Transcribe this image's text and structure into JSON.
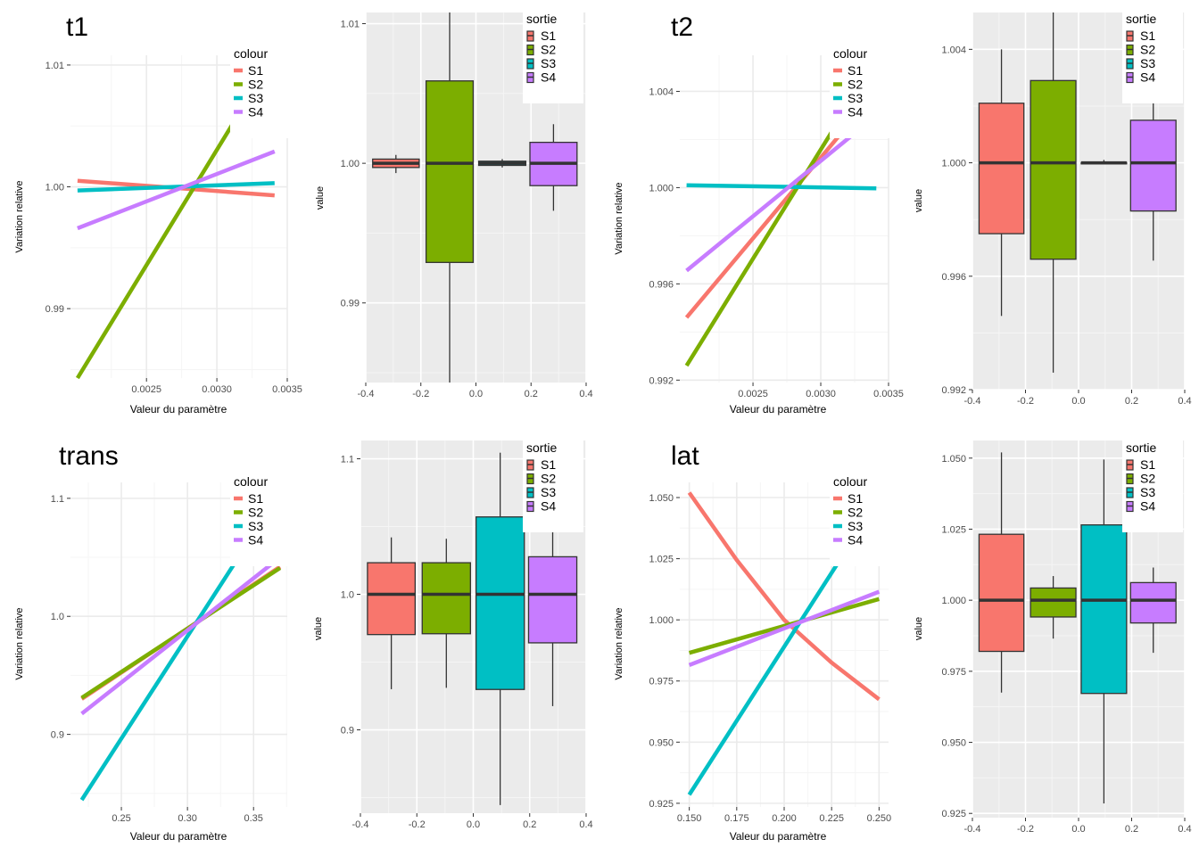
{
  "chart_data": [
    {
      "type": "line",
      "title": "t1",
      "xlabel": "Valeur du paramètre",
      "ylabel": "Variation relative",
      "legend_title": "colour",
      "legend_position": "top-right",
      "grid": true,
      "xlim": [
        0.00196,
        0.0035
      ],
      "ylim": [
        0.9843,
        1.0108
      ],
      "xticks": [
        0.0025,
        0.003,
        0.0035
      ],
      "xtick_labels": [
        "0.0025",
        "0.0030",
        "0.0035"
      ],
      "yticks": [
        0.99,
        1.0,
        1.01
      ],
      "ytick_labels": [
        "0.99",
        "1.00",
        "1.01"
      ],
      "series": [
        {
          "name": "S1",
          "color": "#F8766D",
          "x": [
            0.00201,
            0.00341
          ],
          "y": [
            1.0005,
            0.9993
          ]
        },
        {
          "name": "S2",
          "color": "#7CAE00",
          "x": [
            0.00201,
            0.00341
          ],
          "y": [
            0.9843,
            1.0108
          ]
        },
        {
          "name": "S3",
          "color": "#00BFC4",
          "x": [
            0.00201,
            0.00341
          ],
          "y": [
            0.9997,
            1.0003
          ]
        },
        {
          "name": "S4",
          "color": "#C77CFF",
          "x": [
            0.00201,
            0.00341
          ],
          "y": [
            0.9966,
            1.0029
          ]
        }
      ]
    },
    {
      "type": "box",
      "xlabel": "",
      "ylabel": "value",
      "legend_title": "sortie",
      "legend_position": "top-right",
      "grid": true,
      "xlim": [
        -0.4,
        0.4
      ],
      "ylim": [
        0.9843,
        1.0108
      ],
      "xticks": [
        -0.4,
        -0.2,
        0.0,
        0.2,
        0.4
      ],
      "xtick_labels": [
        "-0.4",
        "-0.2",
        "0.0",
        "0.2",
        "0.4"
      ],
      "yticks": [
        0.99,
        1.0,
        1.01
      ],
      "ytick_labels": [
        "0.99",
        "1.00",
        "1.01"
      ],
      "boxes": [
        {
          "name": "S1",
          "color": "#F8766D",
          "x0": -0.375,
          "x1": -0.206,
          "min": 0.9993,
          "q1": 0.9997,
          "median": 1.0,
          "q3": 1.0003,
          "max": 1.0006
        },
        {
          "name": "S2",
          "color": "#7CAE00",
          "x0": -0.181,
          "x1": -0.01,
          "min": 0.9843,
          "q1": 0.9929,
          "median": 1.0,
          "q3": 1.0059,
          "max": 1.0108
        },
        {
          "name": "S3",
          "color": "#00BFC4",
          "x0": 0.01,
          "x1": 0.181,
          "min": 0.9997,
          "q1": 0.99985,
          "median": 1.0,
          "q3": 1.00015,
          "max": 1.0003
        },
        {
          "name": "S4",
          "color": "#C77CFF",
          "x0": 0.196,
          "x1": 0.367,
          "min": 0.9966,
          "q1": 0.9984,
          "median": 1.0,
          "q3": 1.0015,
          "max": 1.0028
        }
      ]
    },
    {
      "type": "line",
      "title": "t2",
      "xlabel": "Valeur du paramètre",
      "ylabel": "Variation relative",
      "legend_title": "colour",
      "legend_position": "top-right",
      "grid": true,
      "xlim": [
        0.00196,
        0.0035
      ],
      "ylim": [
        0.9919,
        1.0055
      ],
      "xticks": [
        0.0025,
        0.003,
        0.0035
      ],
      "xtick_labels": [
        "0.0025",
        "0.0030",
        "0.0035"
      ],
      "yticks": [
        0.992,
        0.996,
        1.0,
        1.004
      ],
      "ytick_labels": [
        "0.992",
        "0.996",
        "1.000",
        "1.004"
      ],
      "series": [
        {
          "name": "S1",
          "color": "#F8766D",
          "x": [
            0.00201,
            0.00341
          ],
          "y": [
            0.9946,
            1.004
          ]
        },
        {
          "name": "S2",
          "color": "#7CAE00",
          "x": [
            0.00201,
            0.00341
          ],
          "y": [
            0.9926,
            1.0053
          ]
        },
        {
          "name": "S3",
          "color": "#00BFC4",
          "x": [
            0.00201,
            0.00341
          ],
          "y": [
            1.0001,
            0.99997
          ]
        },
        {
          "name": "S4",
          "color": "#C77CFF",
          "x": [
            0.00201,
            0.00341
          ],
          "y": [
            0.99655,
            1.003
          ]
        }
      ]
    },
    {
      "type": "box",
      "xlabel": "",
      "ylabel": "value",
      "legend_title": "sortie",
      "legend_position": "top-right",
      "grid": true,
      "xlim": [
        -0.4,
        0.4
      ],
      "ylim": [
        0.992,
        1.0053
      ],
      "xticks": [
        -0.4,
        -0.2,
        0.0,
        0.2,
        0.4
      ],
      "xtick_labels": [
        "-0.4",
        "-0.2",
        "0.0",
        "0.2",
        "0.4"
      ],
      "yticks": [
        0.992,
        0.996,
        1.0,
        1.004
      ],
      "ytick_labels": [
        "0.992",
        "0.996",
        "1.000",
        "1.004"
      ],
      "boxes": [
        {
          "name": "S1",
          "color": "#F8766D",
          "x0": -0.375,
          "x1": -0.206,
          "min": 0.9946,
          "q1": 0.9975,
          "median": 1.0,
          "q3": 1.0021,
          "max": 1.004
        },
        {
          "name": "S2",
          "color": "#7CAE00",
          "x0": -0.181,
          "x1": -0.01,
          "min": 0.9926,
          "q1": 0.9966,
          "median": 1.0,
          "q3": 1.0029,
          "max": 1.0053
        },
        {
          "name": "S3",
          "color": "#00BFC4",
          "x0": 0.01,
          "x1": 0.181,
          "min": 0.99997,
          "q1": 0.99999,
          "median": 1.0,
          "q3": 1.00001,
          "max": 1.0001
        },
        {
          "name": "S4",
          "color": "#C77CFF",
          "x0": 0.196,
          "x1": 0.367,
          "min": 0.99655,
          "q1": 0.9983,
          "median": 1.0,
          "q3": 1.0015,
          "max": 1.003
        }
      ]
    },
    {
      "type": "line",
      "title": "trans",
      "xlabel": "Valeur du paramètre",
      "ylabel": "Variation relative",
      "legend_title": "colour",
      "legend_position": "top-right",
      "grid": true,
      "xlim": [
        0.2115,
        0.3755
      ],
      "ylim": [
        0.8385,
        1.1135
      ],
      "xticks": [
        0.25,
        0.3,
        0.35
      ],
      "xtick_labels": [
        "0.25",
        "0.30",
        "0.35"
      ],
      "yticks": [
        0.9,
        1.0,
        1.1
      ],
      "ytick_labels": [
        "0.9",
        "1.0",
        "1.1"
      ],
      "series": [
        {
          "name": "S1",
          "color": "#F8766D",
          "x": [
            0.22,
            0.37
          ],
          "y": [
            0.93,
            1.042
          ]
        },
        {
          "name": "S2",
          "color": "#7CAE00",
          "x": [
            0.22,
            0.37
          ],
          "y": [
            0.931,
            1.041
          ]
        },
        {
          "name": "S3",
          "color": "#00BFC4",
          "x": [
            0.22,
            0.37
          ],
          "y": [
            0.8445,
            1.1045
          ]
        },
        {
          "name": "S4",
          "color": "#C77CFF",
          "x": [
            0.22,
            0.37
          ],
          "y": [
            0.9175,
            1.05
          ]
        }
      ]
    },
    {
      "type": "box",
      "xlabel": "",
      "ylabel": "value",
      "legend_title": "sortie",
      "legend_position": "top-right",
      "grid": true,
      "xlim": [
        -0.4,
        0.4
      ],
      "ylim": [
        0.8385,
        1.1135
      ],
      "xticks": [
        -0.4,
        -0.2,
        0.0,
        0.2,
        0.4
      ],
      "xtick_labels": [
        "-0.4",
        "-0.2",
        "0.0",
        "0.2",
        "0.4"
      ],
      "yticks": [
        0.9,
        1.0,
        1.1
      ],
      "ytick_labels": [
        "0.9",
        "1.0",
        "1.1"
      ],
      "boxes": [
        {
          "name": "S1",
          "color": "#F8766D",
          "x0": -0.375,
          "x1": -0.206,
          "min": 0.93,
          "q1": 0.9703,
          "median": 1.0,
          "q3": 1.0233,
          "max": 1.042
        },
        {
          "name": "S2",
          "color": "#7CAE00",
          "x0": -0.181,
          "x1": -0.01,
          "min": 0.931,
          "q1": 0.9709,
          "median": 1.0,
          "q3": 1.0233,
          "max": 1.041
        },
        {
          "name": "S3",
          "color": "#00BFC4",
          "x0": 0.01,
          "x1": 0.181,
          "min": 0.8445,
          "q1": 0.9298,
          "median": 1.0,
          "q3": 1.0571,
          "max": 1.1045
        },
        {
          "name": "S4",
          "color": "#C77CFF",
          "x0": 0.196,
          "x1": 0.367,
          "min": 0.9175,
          "q1": 0.9642,
          "median": 1.0,
          "q3": 1.0277,
          "max": 1.05
        }
      ]
    },
    {
      "type": "line",
      "title": "lat",
      "xlabel": "Valeur du paramètre",
      "ylabel": "Variation relative",
      "legend_title": "colour",
      "legend_position": "top-right",
      "grid": true,
      "xlim": [
        0.145,
        0.255
      ],
      "ylim": [
        0.9235,
        1.0562
      ],
      "xticks": [
        0.15,
        0.175,
        0.2,
        0.225,
        0.25
      ],
      "xtick_labels": [
        "0.150",
        "0.175",
        "0.200",
        "0.225",
        "0.250"
      ],
      "yticks": [
        0.925,
        0.95,
        0.975,
        1.0,
        1.025,
        1.05
      ],
      "ytick_labels": [
        "0.925",
        "0.950",
        "0.975",
        "1.000",
        "1.025",
        "1.050"
      ],
      "series": [
        {
          "name": "S1",
          "color": "#F8766D",
          "x": [
            0.15,
            0.175,
            0.2,
            0.225,
            0.25
          ],
          "y": [
            1.052,
            1.0245,
            1.0,
            0.9825,
            0.9675
          ]
        },
        {
          "name": "S2",
          "color": "#7CAE00",
          "x": [
            0.15,
            0.25
          ],
          "y": [
            0.9865,
            1.0085
          ]
        },
        {
          "name": "S3",
          "color": "#00BFC4",
          "x": [
            0.15,
            0.25
          ],
          "y": [
            0.9285,
            1.0495
          ]
        },
        {
          "name": "S4",
          "color": "#C77CFF",
          "x": [
            0.15,
            0.25
          ],
          "y": [
            0.9815,
            1.0115
          ]
        }
      ]
    },
    {
      "type": "box",
      "xlabel": "",
      "ylabel": "value",
      "legend_title": "sortie",
      "legend_position": "top-right",
      "grid": true,
      "xlim": [
        -0.4,
        0.4
      ],
      "ylim": [
        0.9235,
        1.0562
      ],
      "xticks": [
        -0.4,
        -0.2,
        0.0,
        0.2,
        0.4
      ],
      "xtick_labels": [
        "-0.4",
        "-0.2",
        "0.0",
        "0.2",
        "0.4"
      ],
      "yticks": [
        0.925,
        0.95,
        0.975,
        1.0,
        1.025,
        1.05
      ],
      "ytick_labels": [
        "0.925",
        "0.950",
        "0.975",
        "1.000",
        "1.025",
        "1.050"
      ],
      "boxes": [
        {
          "name": "S1",
          "color": "#F8766D",
          "x0": -0.375,
          "x1": -0.206,
          "min": 0.9675,
          "q1": 0.982,
          "median": 1.0,
          "q3": 1.0232,
          "max": 1.052
        },
        {
          "name": "S2",
          "color": "#7CAE00",
          "x0": -0.181,
          "x1": -0.01,
          "min": 0.9865,
          "q1": 0.9941,
          "median": 1.0,
          "q3": 1.0043,
          "max": 1.0085
        },
        {
          "name": "S3",
          "color": "#00BFC4",
          "x0": 0.01,
          "x1": 0.181,
          "min": 0.9285,
          "q1": 0.9672,
          "median": 1.0,
          "q3": 1.0265,
          "max": 1.0495
        },
        {
          "name": "S4",
          "color": "#C77CFF",
          "x0": 0.196,
          "x1": 0.367,
          "min": 0.9815,
          "q1": 0.992,
          "median": 1.0,
          "q3": 1.0062,
          "max": 1.0115
        }
      ]
    }
  ]
}
